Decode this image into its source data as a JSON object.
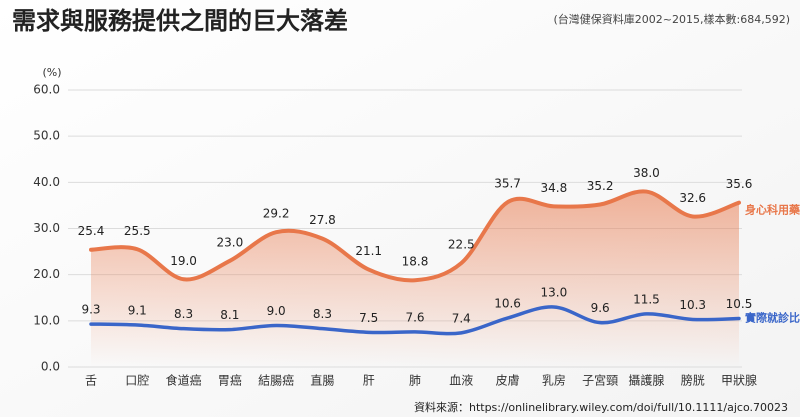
{
  "chart_data": {
    "type": "line",
    "title": "需求與服務提供之間的巨大落差",
    "subtitle": "(台灣健保資料庫2002~2015,樣本數:684,592)",
    "y_unit": "(%)",
    "source": "資料來源：https://onlinelibrary.wiley.com/doi/full/10.1111/ajco.70023",
    "categories": [
      "舌",
      "口腔",
      "食道癌",
      "胃癌",
      "結腸癌",
      "直腸",
      "肝",
      "肺",
      "血液",
      "皮膚",
      "乳房",
      "子宮頸",
      "攝護腺",
      "膀胱",
      "甲狀腺"
    ],
    "series": [
      {
        "name": "身心科用藥比例",
        "color": "#e8774a",
        "area": true,
        "values": [
          25.4,
          25.5,
          19.0,
          23.0,
          29.2,
          27.8,
          21.1,
          18.8,
          22.5,
          35.7,
          34.8,
          35.2,
          38.0,
          32.6,
          35.6
        ],
        "value_labels": [
          "25.4",
          "25.5",
          "19.0",
          "23.0",
          "29.2",
          "27.8",
          "21.1",
          "18.8",
          "22.5",
          "35.7",
          "34.8",
          "35.2",
          "38.0",
          "32.6",
          "35.6"
        ]
      },
      {
        "name": "實際就診比例",
        "color": "#3a66c9",
        "area": false,
        "values": [
          9.3,
          9.1,
          8.3,
          8.1,
          9.0,
          8.3,
          7.5,
          7.6,
          7.4,
          10.6,
          13.0,
          9.6,
          11.5,
          10.3,
          10.5
        ],
        "value_labels": [
          "9.3",
          "9.1",
          "8.3",
          "8.1",
          "9.0",
          "8.3",
          "7.5",
          "7.6",
          "7.4",
          "10.6",
          "13.0",
          "9.6",
          "11.5",
          "10.3",
          "10.5"
        ]
      }
    ],
    "ylim": [
      0,
      60
    ],
    "yticks": [
      {
        "value": 0,
        "label": "0.0"
      },
      {
        "value": 10,
        "label": "10.0"
      },
      {
        "value": 20,
        "label": "20.0"
      },
      {
        "value": 30,
        "label": "30.0"
      },
      {
        "value": 40,
        "label": "40.0"
      },
      {
        "value": 50,
        "label": "50.0"
      },
      {
        "value": 60,
        "label": "60.0"
      }
    ],
    "grid": true
  }
}
